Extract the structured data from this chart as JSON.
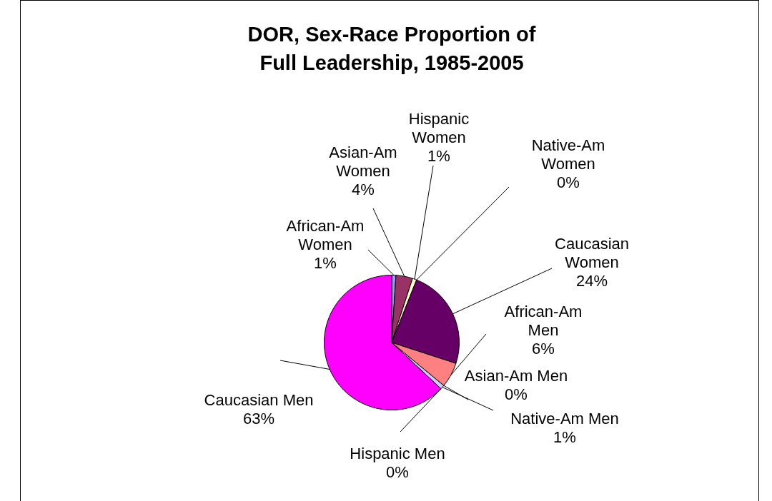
{
  "chart_data": {
    "type": "pie",
    "title": "DOR, Sex-Race Proportion of Full Leadership,  1985-2005",
    "categories": [
      "African-Am Women",
      "Asian-Am Women",
      "Hispanic Women",
      "Native-Am Women",
      "Caucasian Women",
      "African-Am Men",
      "Asian-Am Men",
      "Native-Am Men",
      "Hispanic Men",
      "Caucasian Men"
    ],
    "values": [
      1,
      4,
      1,
      0,
      24,
      6,
      0,
      1,
      0,
      63
    ],
    "value_labels": [
      "1%",
      "4%",
      "1%",
      "0%",
      "24%",
      "6%",
      "0%",
      "1%",
      "0%",
      "63%"
    ],
    "colors": [
      "#9999ff",
      "#993366",
      "#ffffcc",
      "#ccffff",
      "#660066",
      "#ff8080",
      "#0066cc",
      "#ccccff",
      "#000080",
      "#ff00ff"
    ],
    "legend": false
  }
}
